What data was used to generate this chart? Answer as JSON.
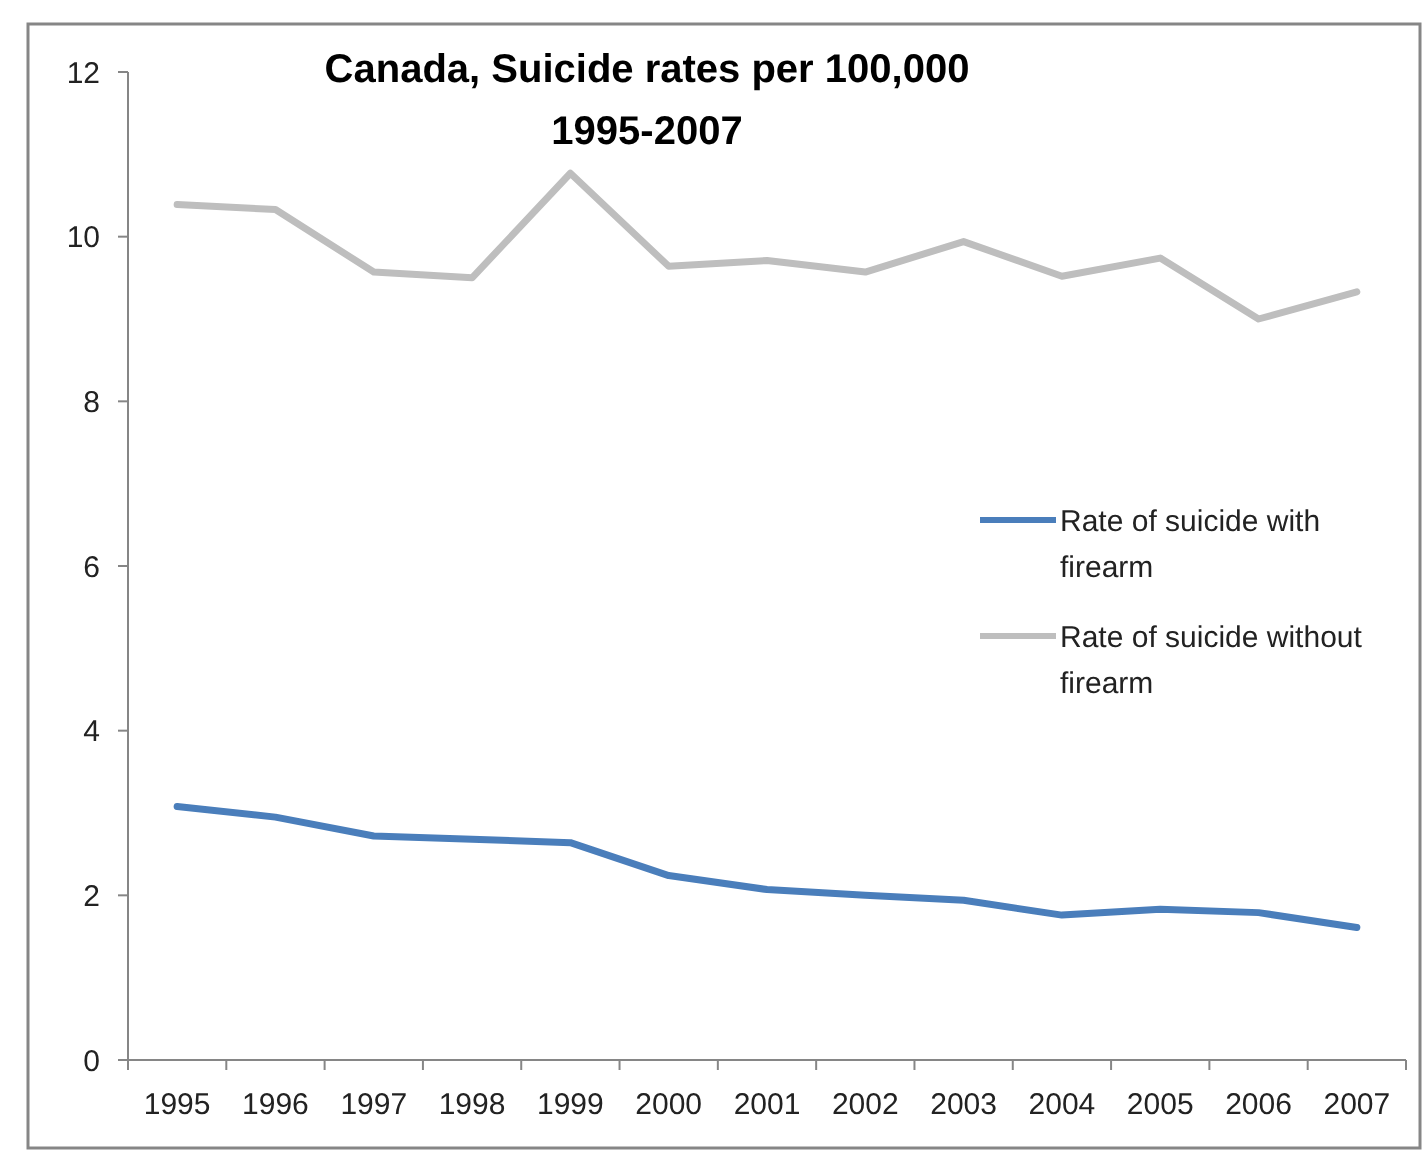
{
  "chart_data": {
    "type": "line",
    "title": "Canada, Suicide rates per 100,000\n1995-2007",
    "categories": [
      "1995",
      "1996",
      "1997",
      "1998",
      "1999",
      "2000",
      "2001",
      "2002",
      "2003",
      "2004",
      "2005",
      "2006",
      "2007"
    ],
    "series": [
      {
        "name": "Rate of suicide with firearm",
        "color": "#4a7ebb",
        "values": [
          3.08,
          2.95,
          2.72,
          2.68,
          2.64,
          2.24,
          2.07,
          2.0,
          1.94,
          1.76,
          1.83,
          1.79,
          1.61
        ]
      },
      {
        "name": "Rate of suicide without firearm",
        "color": "#bebebe",
        "values": [
          10.39,
          10.33,
          9.57,
          9.5,
          10.77,
          9.64,
          9.71,
          9.57,
          9.94,
          9.52,
          9.74,
          9.0,
          9.33
        ]
      }
    ],
    "ylim": [
      0,
      12
    ],
    "yticks": [
      0,
      2,
      4,
      6,
      8,
      10,
      12
    ],
    "grid": false,
    "legend": "right",
    "marker": "none",
    "line_style": "solid"
  }
}
